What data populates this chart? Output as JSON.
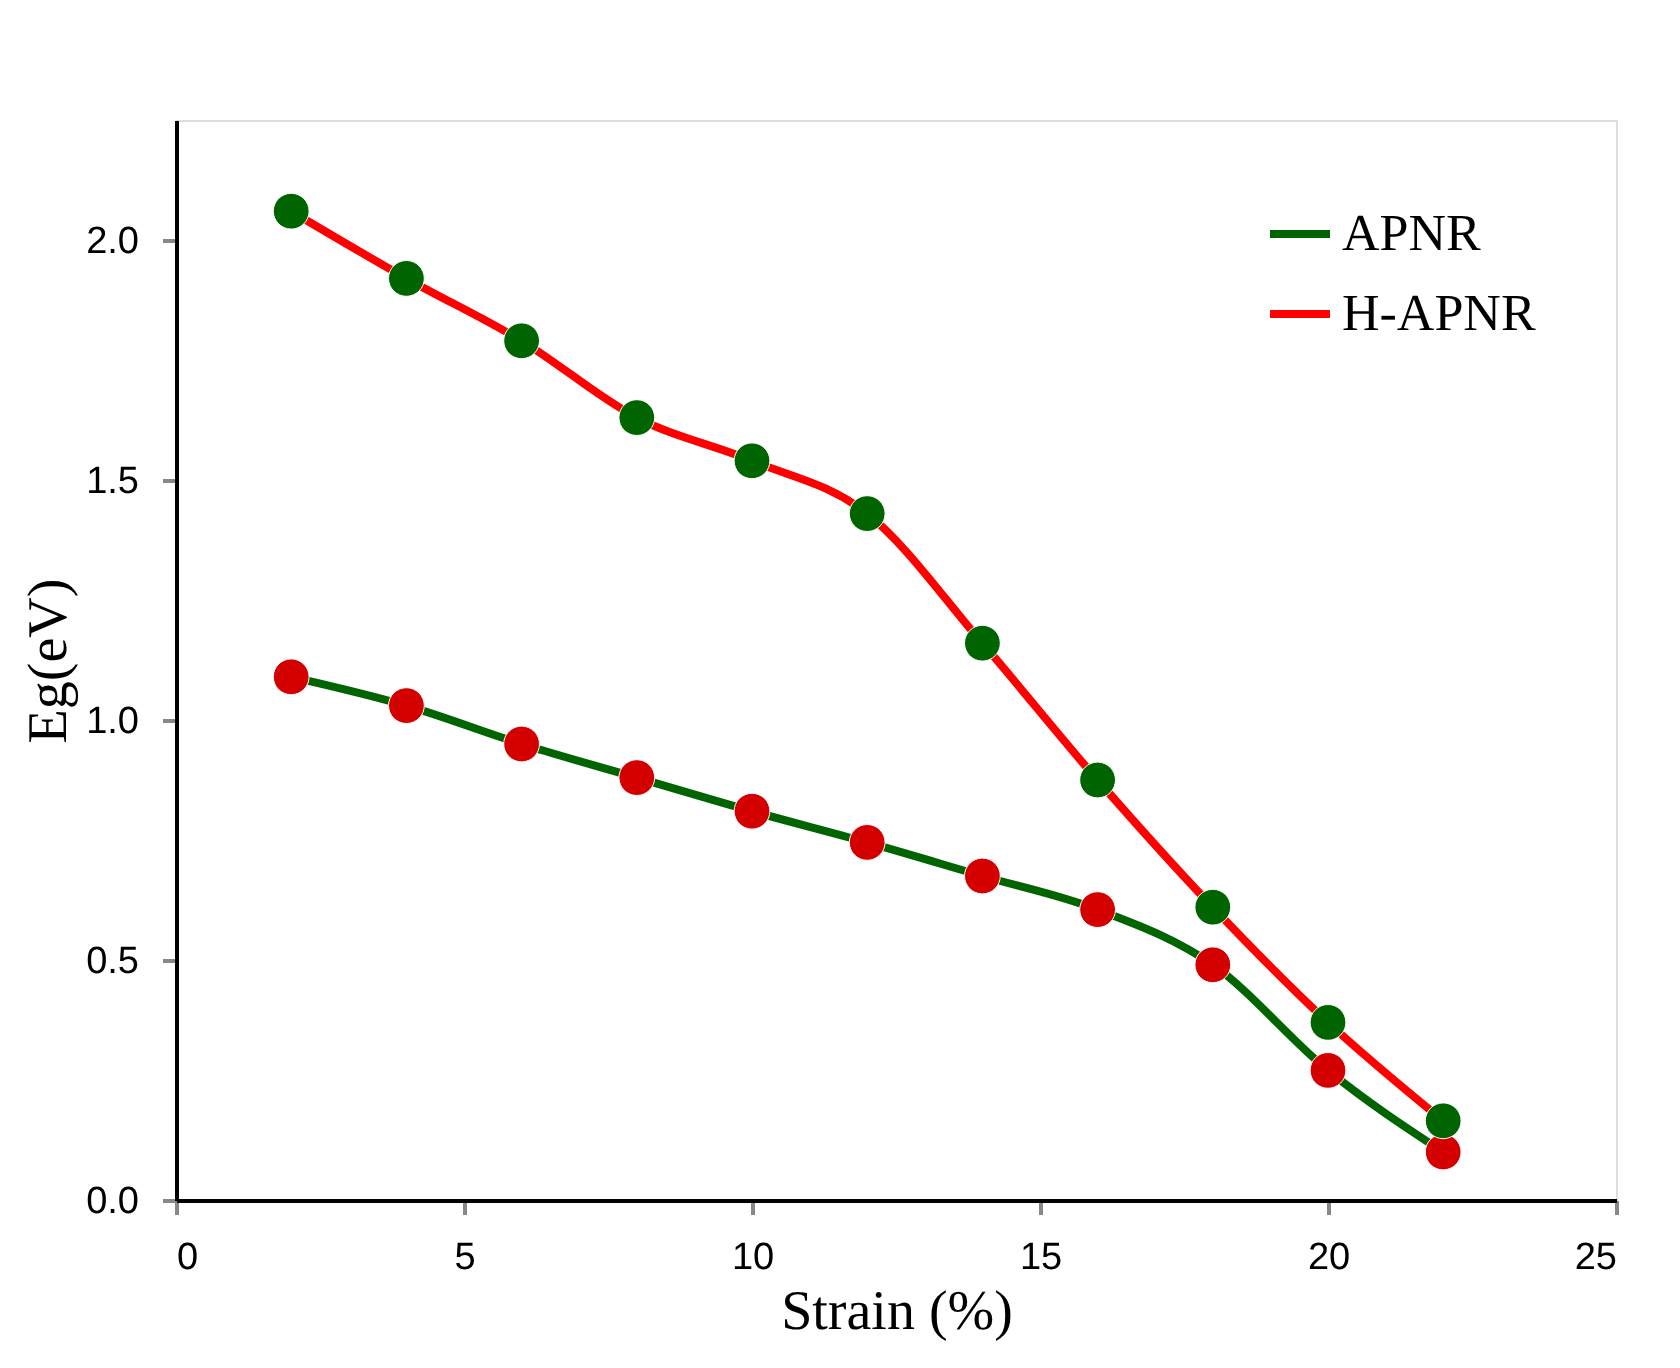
{
  "chart_data": {
    "type": "line",
    "xlabel": "Strain (%)",
    "ylabel": "Eg(eV)",
    "x": [
      2,
      4,
      6,
      8,
      10,
      12,
      14,
      16,
      18,
      20,
      22
    ],
    "series": [
      {
        "name": "APNR",
        "color": "#006400",
        "colors": [
          "#d40000",
          "#d40000",
          "#d40000",
          "#d40000",
          "#d40000",
          "#d40000",
          "#d40000",
          "#d40000",
          "#d40000",
          "#d40000",
          "#d40000"
        ],
        "values": [
          1.09,
          1.03,
          0.95,
          0.88,
          0.81,
          0.745,
          0.675,
          0.605,
          0.49,
          0.27,
          0.1
        ]
      },
      {
        "name": "H-APNR",
        "color": "#ff0000",
        "colors": [
          "#006400",
          "#006400",
          "#006400",
          "#006400",
          "#006400",
          "#006400",
          "#006400",
          "#006400",
          "#006400",
          "#006400",
          "#006400"
        ],
        "values": [
          2.06,
          1.92,
          1.79,
          1.63,
          1.54,
          1.43,
          1.16,
          0.875,
          0.61,
          0.37,
          0.165
        ]
      }
    ],
    "xlim": [
      0,
      25
    ],
    "xticks": [
      0,
      5,
      10,
      15,
      20,
      25
    ],
    "ylim": [
      0,
      2.25
    ],
    "yticks": [
      {
        "value": 0,
        "label": "0.0"
      },
      0.5,
      {
        "value": 1,
        "label": "1.0"
      },
      1.5,
      {
        "value": 2,
        "label": "2.0"
      }
    ],
    "marker": "circle",
    "line_style": "solid",
    "legend": "top right",
    "grid": false
  }
}
